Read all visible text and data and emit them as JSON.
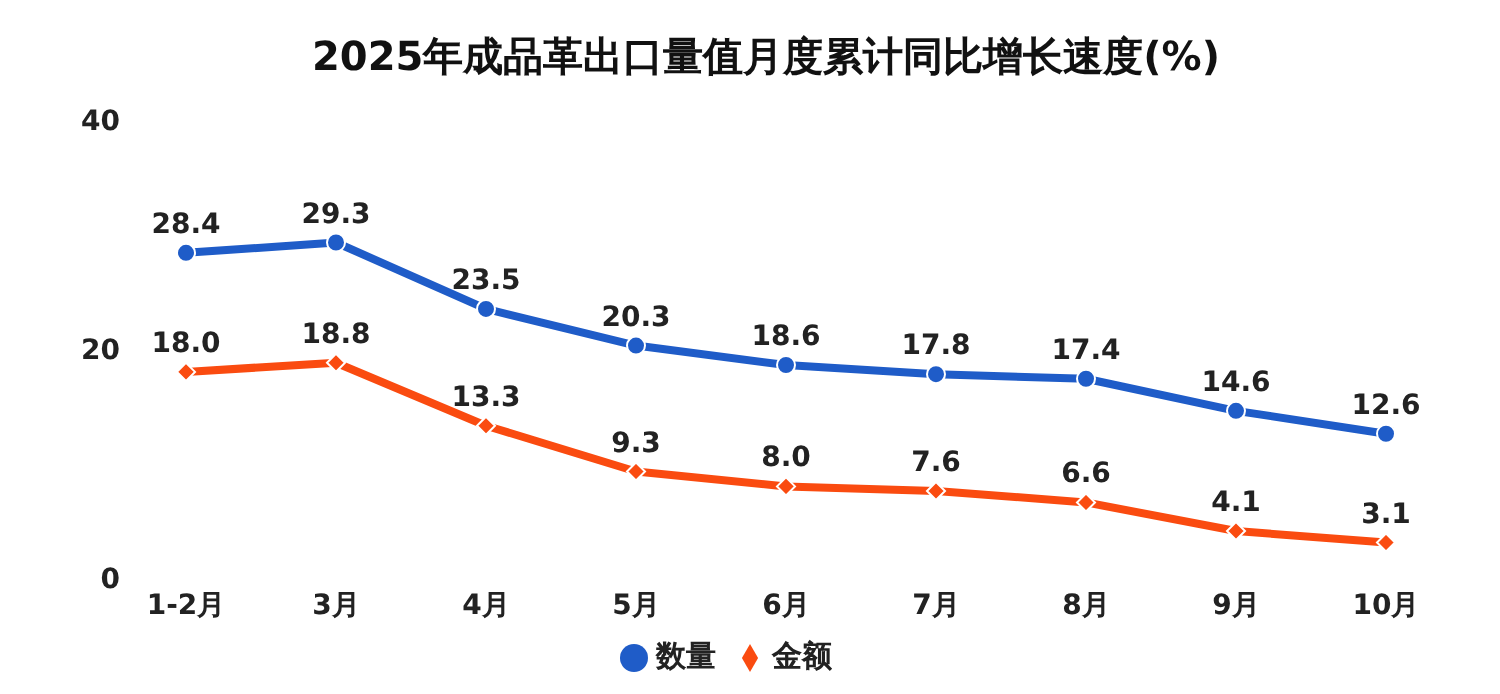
{
  "chart_data": {
    "type": "line",
    "title": "2025年成品革出口量值月度累计同比增长速度(%)",
    "categories": [
      "1-2月",
      "3月",
      "4月",
      "5月",
      "6月",
      "7月",
      "8月",
      "9月",
      "10月"
    ],
    "series": [
      {
        "name": "数量",
        "color": "#1f5cc8",
        "marker": "circle",
        "values": [
          28.4,
          29.3,
          23.5,
          20.3,
          18.6,
          17.8,
          17.4,
          14.6,
          12.6
        ],
        "value_labels": [
          "28.4",
          "29.3",
          "23.5",
          "20.3",
          "18.6",
          "17.8",
          "17.4",
          "14.6",
          "12.6"
        ]
      },
      {
        "name": "金额",
        "color": "#fa4b10",
        "marker": "diamond",
        "values": [
          18.0,
          18.8,
          13.3,
          9.3,
          8.0,
          7.6,
          6.6,
          4.1,
          3.1
        ],
        "value_labels": [
          "18.0",
          "18.8",
          "13.3",
          "9.3",
          "8.0",
          "7.6",
          "6.6",
          "4.1",
          "3.1"
        ]
      }
    ],
    "ylim": [
      0,
      40
    ],
    "yticks": [
      0,
      20,
      40
    ],
    "grid": false,
    "legend": "bottom"
  }
}
